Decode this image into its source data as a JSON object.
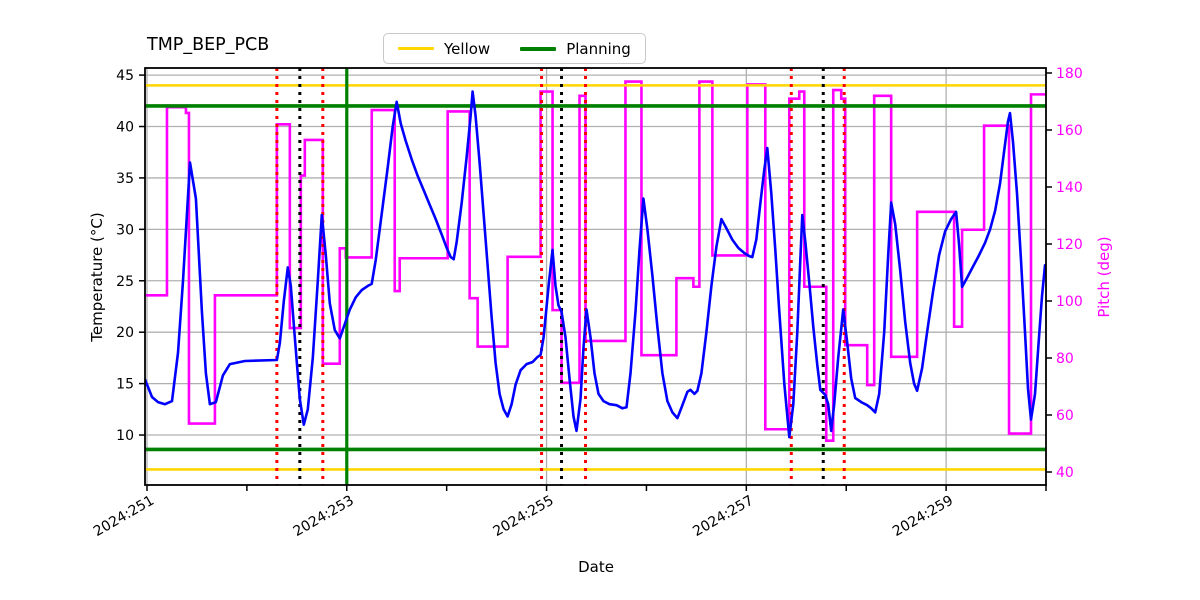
{
  "chart_data": {
    "type": "line",
    "title": "TMP_BEP_PCB",
    "xlabel": "Date",
    "ylabel_left": "Temperature (°C)",
    "ylabel_right": "Pitch (deg)",
    "xlim": [
      250.98,
      260.0
    ],
    "ylim_left": [
      5.14,
      45.69
    ],
    "ylim_right": [
      35.44,
      181.75
    ],
    "x_ticks": [
      {
        "day": 251,
        "label": "2024:251"
      },
      {
        "day": 252,
        "label": ""
      },
      {
        "day": 253,
        "label": "2024:253"
      },
      {
        "day": 254,
        "label": ""
      },
      {
        "day": 255,
        "label": "2024:255"
      },
      {
        "day": 256,
        "label": ""
      },
      {
        "day": 257,
        "label": "2024:257"
      },
      {
        "day": 258,
        "label": ""
      },
      {
        "day": 259,
        "label": "2024:259"
      },
      {
        "day": 260,
        "label": ""
      }
    ],
    "y_ticks_left": [
      10,
      15,
      20,
      25,
      30,
      35,
      40,
      45
    ],
    "y_ticks_right": [
      40,
      60,
      80,
      100,
      120,
      140,
      160,
      180
    ],
    "grid": {
      "color": "#b0b0b0",
      "horizontal_at_left_ticks": true,
      "vertical_days": [
        251,
        253,
        255,
        257,
        259
      ]
    },
    "colors": {
      "temperature": "#0000ff",
      "pitch": "#ff00ff",
      "yellow_limit": "#ffd700",
      "planning": "#008000",
      "red_event": "#ff0000",
      "black_event": "#000000",
      "right_axis_text": "#ff00ff"
    },
    "limit_lines": {
      "yellow_left_axis": [
        44.0,
        6.65
      ],
      "planning_left_axis": [
        42.0,
        8.6
      ],
      "planning_vertical_day": 253.0
    },
    "event_lines": {
      "red_dotted_days": [
        252.3,
        252.76,
        254.95,
        255.39,
        257.45,
        257.98
      ],
      "black_dotted_days": [
        252.53,
        255.15,
        257.77
      ]
    },
    "series": [
      {
        "name": "Temperature",
        "axis": "left",
        "style": "line",
        "points": [
          [
            250.98,
            15.4
          ],
          [
            251.05,
            13.7
          ],
          [
            251.11,
            13.2
          ],
          [
            251.18,
            13.0
          ],
          [
            251.25,
            13.3
          ],
          [
            251.31,
            18.0
          ],
          [
            251.36,
            25.0
          ],
          [
            251.43,
            36.5
          ],
          [
            251.49,
            33.0
          ],
          [
            251.55,
            22.0
          ],
          [
            251.59,
            16.0
          ],
          [
            251.63,
            13.0
          ],
          [
            251.69,
            13.2
          ],
          [
            251.76,
            15.8
          ],
          [
            251.83,
            16.9
          ],
          [
            251.98,
            17.2
          ],
          [
            252.3,
            17.3
          ],
          [
            252.33,
            19.0
          ],
          [
            252.37,
            23.0
          ],
          [
            252.41,
            26.3
          ],
          [
            252.44,
            24.5
          ],
          [
            252.48,
            19.5
          ],
          [
            252.53,
            13.5
          ],
          [
            252.57,
            11.0
          ],
          [
            252.61,
            12.5
          ],
          [
            252.66,
            17.5
          ],
          [
            252.71,
            25.0
          ],
          [
            252.75,
            31.4
          ],
          [
            252.79,
            27.5
          ],
          [
            252.83,
            22.8
          ],
          [
            252.88,
            20.2
          ],
          [
            252.93,
            19.4
          ],
          [
            252.98,
            20.8
          ],
          [
            253.03,
            22.2
          ],
          [
            253.09,
            23.4
          ],
          [
            253.15,
            24.1
          ],
          [
            253.21,
            24.5
          ],
          [
            253.25,
            24.7
          ],
          [
            253.29,
            27.0
          ],
          [
            253.35,
            31.5
          ],
          [
            253.41,
            36.0
          ],
          [
            253.46,
            40.0
          ],
          [
            253.5,
            42.4
          ],
          [
            253.54,
            40.3
          ],
          [
            253.59,
            38.6
          ],
          [
            253.65,
            36.8
          ],
          [
            253.71,
            35.2
          ],
          [
            253.77,
            33.8
          ],
          [
            253.83,
            32.4
          ],
          [
            253.89,
            31.0
          ],
          [
            253.95,
            29.5
          ],
          [
            254.0,
            28.2
          ],
          [
            254.04,
            27.3
          ],
          [
            254.07,
            27.1
          ],
          [
            254.1,
            28.8
          ],
          [
            254.15,
            32.5
          ],
          [
            254.2,
            37.0
          ],
          [
            254.24,
            41.0
          ],
          [
            254.26,
            43.4
          ],
          [
            254.29,
            41.0
          ],
          [
            254.33,
            36.5
          ],
          [
            254.37,
            31.5
          ],
          [
            254.41,
            26.5
          ],
          [
            254.45,
            21.5
          ],
          [
            254.49,
            17.0
          ],
          [
            254.53,
            14.0
          ],
          [
            254.57,
            12.5
          ],
          [
            254.61,
            11.8
          ],
          [
            254.65,
            13.0
          ],
          [
            254.69,
            14.9
          ],
          [
            254.74,
            16.3
          ],
          [
            254.8,
            16.9
          ],
          [
            254.86,
            17.1
          ],
          [
            254.91,
            17.6
          ],
          [
            254.94,
            17.8
          ],
          [
            254.97,
            19.5
          ],
          [
            255.02,
            24.5
          ],
          [
            255.06,
            28.0
          ],
          [
            255.09,
            24.5
          ],
          [
            255.12,
            22.6
          ],
          [
            255.15,
            22.0
          ],
          [
            255.19,
            19.5
          ],
          [
            255.23,
            15.5
          ],
          [
            255.27,
            11.8
          ],
          [
            255.3,
            10.4
          ],
          [
            255.34,
            13.5
          ],
          [
            255.37,
            18.5
          ],
          [
            255.4,
            22.2
          ],
          [
            255.44,
            19.5
          ],
          [
            255.48,
            16.0
          ],
          [
            255.52,
            14.0
          ],
          [
            255.57,
            13.3
          ],
          [
            255.63,
            13.0
          ],
          [
            255.7,
            12.9
          ],
          [
            255.76,
            12.6
          ],
          [
            255.8,
            12.7
          ],
          [
            255.84,
            16.0
          ],
          [
            255.89,
            22.0
          ],
          [
            255.93,
            28.0
          ],
          [
            255.97,
            33.0
          ],
          [
            256.01,
            30.0
          ],
          [
            256.06,
            25.5
          ],
          [
            256.11,
            20.5
          ],
          [
            256.16,
            16.0
          ],
          [
            256.21,
            13.3
          ],
          [
            256.26,
            12.2
          ],
          [
            256.31,
            11.65
          ],
          [
            256.36,
            12.9
          ],
          [
            256.41,
            14.2
          ],
          [
            256.44,
            14.4
          ],
          [
            256.48,
            14.0
          ],
          [
            256.51,
            14.3
          ],
          [
            256.55,
            16.0
          ],
          [
            256.6,
            20.0
          ],
          [
            256.65,
            24.5
          ],
          [
            256.7,
            28.3
          ],
          [
            256.75,
            31.0
          ],
          [
            256.8,
            30.1
          ],
          [
            256.86,
            29.0
          ],
          [
            256.92,
            28.2
          ],
          [
            256.98,
            27.7
          ],
          [
            257.03,
            27.4
          ],
          [
            257.06,
            27.3
          ],
          [
            257.1,
            29.0
          ],
          [
            257.14,
            32.5
          ],
          [
            257.18,
            35.8
          ],
          [
            257.21,
            37.9
          ],
          [
            257.25,
            33.5
          ],
          [
            257.29,
            28.0
          ],
          [
            257.33,
            22.0
          ],
          [
            257.38,
            15.0
          ],
          [
            257.43,
            9.8
          ],
          [
            257.47,
            13.0
          ],
          [
            257.51,
            20.0
          ],
          [
            257.54,
            27.0
          ],
          [
            257.56,
            31.4
          ],
          [
            257.59,
            28.8
          ],
          [
            257.63,
            24.8
          ],
          [
            257.67,
            20.5
          ],
          [
            257.71,
            16.8
          ],
          [
            257.74,
            14.4
          ],
          [
            257.79,
            13.9
          ],
          [
            257.82,
            13.0
          ],
          [
            257.85,
            10.4
          ],
          [
            257.88,
            13.0
          ],
          [
            257.92,
            17.5
          ],
          [
            257.97,
            22.2
          ],
          [
            258.01,
            19.0
          ],
          [
            258.05,
            15.5
          ],
          [
            258.09,
            13.6
          ],
          [
            258.15,
            13.2
          ],
          [
            258.21,
            12.9
          ],
          [
            258.25,
            12.6
          ],
          [
            258.29,
            12.2
          ],
          [
            258.33,
            14.0
          ],
          [
            258.38,
            20.0
          ],
          [
            258.42,
            27.5
          ],
          [
            258.45,
            32.6
          ],
          [
            258.49,
            30.5
          ],
          [
            258.54,
            26.0
          ],
          [
            258.59,
            21.0
          ],
          [
            258.64,
            17.0
          ],
          [
            258.68,
            15.0
          ],
          [
            258.71,
            14.3
          ],
          [
            258.76,
            16.5
          ],
          [
            258.81,
            20.0
          ],
          [
            258.87,
            24.0
          ],
          [
            258.93,
            27.5
          ],
          [
            258.99,
            29.8
          ],
          [
            259.05,
            31.0
          ],
          [
            259.1,
            31.7
          ],
          [
            259.13,
            28.5
          ],
          [
            259.16,
            24.4
          ],
          [
            259.21,
            25.3
          ],
          [
            259.27,
            26.4
          ],
          [
            259.33,
            27.5
          ],
          [
            259.39,
            28.7
          ],
          [
            259.44,
            30.0
          ],
          [
            259.49,
            31.8
          ],
          [
            259.54,
            34.5
          ],
          [
            259.58,
            37.5
          ],
          [
            259.62,
            40.5
          ],
          [
            259.64,
            41.3
          ],
          [
            259.67,
            38.5
          ],
          [
            259.71,
            33.5
          ],
          [
            259.75,
            27.0
          ],
          [
            259.79,
            20.0
          ],
          [
            259.82,
            14.5
          ],
          [
            259.85,
            11.5
          ],
          [
            259.89,
            14.0
          ],
          [
            259.93,
            19.5
          ],
          [
            259.96,
            23.5
          ],
          [
            259.99,
            26.5
          ]
        ]
      },
      {
        "name": "Pitch",
        "axis": "right",
        "style": "step",
        "steps": [
          [
            250.98,
            251.2,
            102
          ],
          [
            251.2,
            251.39,
            168
          ],
          [
            251.39,
            251.42,
            166
          ],
          [
            251.42,
            251.68,
            57
          ],
          [
            251.68,
            252.3,
            102
          ],
          [
            252.3,
            252.43,
            162
          ],
          [
            252.43,
            252.54,
            90.5
          ],
          [
            252.54,
            252.58,
            144
          ],
          [
            252.58,
            252.76,
            156.5
          ],
          [
            252.76,
            252.93,
            78
          ],
          [
            252.93,
            252.99,
            118.5
          ],
          [
            252.99,
            253.25,
            115.3
          ],
          [
            253.25,
            253.48,
            167
          ],
          [
            253.48,
            253.53,
            103.5
          ],
          [
            253.53,
            254.01,
            115
          ],
          [
            254.01,
            254.23,
            166.5
          ],
          [
            254.23,
            254.31,
            101
          ],
          [
            254.31,
            254.61,
            84
          ],
          [
            254.61,
            254.94,
            115.5
          ],
          [
            254.94,
            255.06,
            173.5
          ],
          [
            255.06,
            255.15,
            96.8
          ],
          [
            255.15,
            255.33,
            71.3
          ],
          [
            255.33,
            255.39,
            172
          ],
          [
            255.39,
            255.79,
            86
          ],
          [
            255.79,
            255.95,
            177
          ],
          [
            255.95,
            256.3,
            81
          ],
          [
            256.3,
            256.47,
            108
          ],
          [
            256.47,
            256.53,
            105
          ],
          [
            256.53,
            256.66,
            177
          ],
          [
            256.66,
            257.01,
            116
          ],
          [
            257.01,
            257.19,
            176
          ],
          [
            257.19,
            257.43,
            55
          ],
          [
            257.43,
            257.53,
            171
          ],
          [
            257.53,
            257.58,
            173.5
          ],
          [
            257.58,
            257.8,
            105
          ],
          [
            257.8,
            257.87,
            51
          ],
          [
            257.87,
            257.95,
            174
          ],
          [
            257.95,
            257.99,
            171
          ],
          [
            257.99,
            258.21,
            84.5
          ],
          [
            258.21,
            258.28,
            70.5
          ],
          [
            258.28,
            258.45,
            172
          ],
          [
            258.45,
            258.71,
            80.4
          ],
          [
            258.71,
            259.08,
            131.3
          ],
          [
            259.08,
            259.16,
            91
          ],
          [
            259.16,
            259.38,
            125
          ],
          [
            259.38,
            259.63,
            161.5
          ],
          [
            259.63,
            259.85,
            53.5
          ],
          [
            259.85,
            259.99,
            172.5
          ]
        ]
      }
    ]
  },
  "legend": {
    "items": [
      {
        "label": "Yellow",
        "color": "#ffd700"
      },
      {
        "label": "Planning",
        "color": "#008000"
      }
    ]
  }
}
